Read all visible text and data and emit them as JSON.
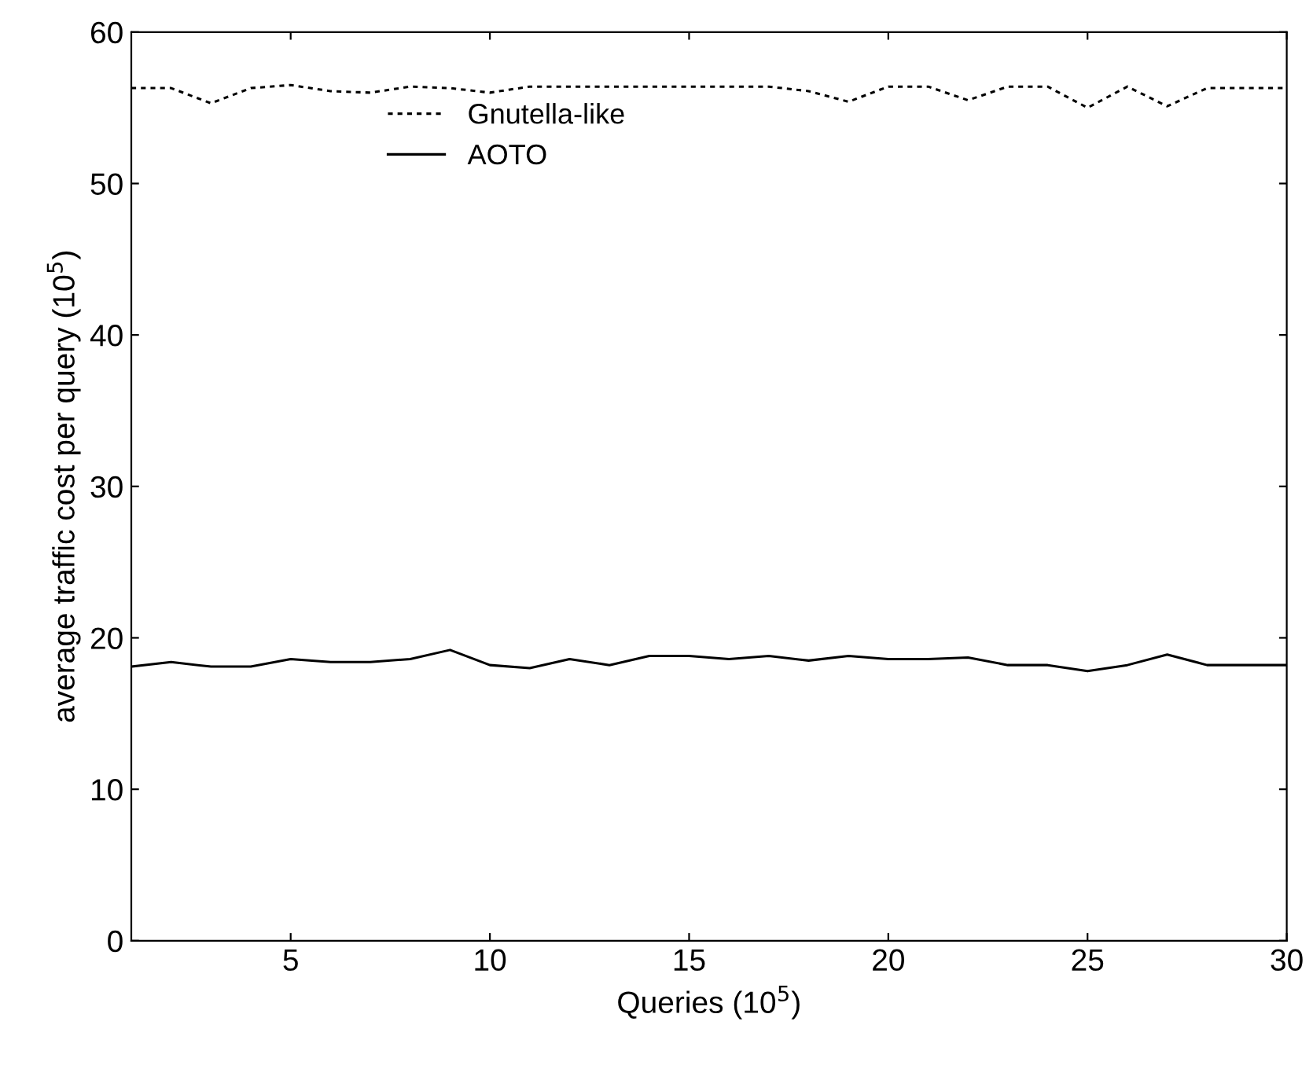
{
  "chart_data": {
    "type": "line",
    "xlabel": "Queries (10$^{5}$)",
    "ylabel": "average traffic cost per query (10$^{5}$)",
    "x": [
      1,
      2,
      3,
      4,
      5,
      6,
      7,
      8,
      9,
      10,
      11,
      12,
      13,
      14,
      15,
      16,
      17,
      18,
      19,
      20,
      21,
      22,
      23,
      24,
      25,
      26,
      27,
      28,
      29,
      30
    ],
    "series": [
      {
        "name": "Gnutella-like",
        "color": "#000000",
        "line_style": "dotted",
        "values": [
          56.3,
          56.3,
          55.3,
          56.3,
          56.5,
          56.1,
          56.0,
          56.4,
          56.3,
          56.0,
          56.4,
          56.4,
          56.4,
          56.4,
          56.4,
          56.4,
          56.4,
          56.1,
          55.4,
          56.4,
          56.4,
          55.5,
          56.4,
          56.4,
          55.0,
          56.4,
          55.1,
          56.3,
          56.3,
          56.3
        ]
      },
      {
        "name": "AOTO",
        "color": "#000000",
        "line_style": "solid",
        "values": [
          18.1,
          18.4,
          18.1,
          18.1,
          18.6,
          18.4,
          18.4,
          18.6,
          19.2,
          18.2,
          18.0,
          18.6,
          18.2,
          18.8,
          18.8,
          18.6,
          18.8,
          18.5,
          18.8,
          18.6,
          18.6,
          18.7,
          18.2,
          18.2,
          17.8,
          18.2,
          18.9,
          18.2,
          18.2,
          18.2
        ]
      }
    ],
    "xlim": [
      1,
      30
    ],
    "ylim": [
      0,
      60
    ],
    "xticks": [
      5,
      10,
      15,
      20,
      25,
      30
    ],
    "yticks": [
      0,
      10,
      20,
      30,
      40,
      50,
      60
    ],
    "grid": false,
    "legend": "top left"
  }
}
